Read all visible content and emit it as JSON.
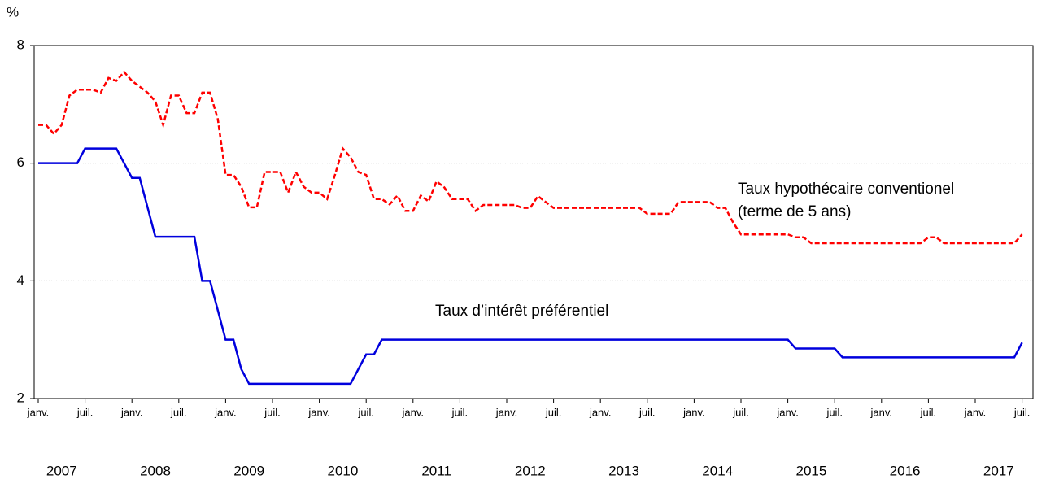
{
  "chart_data": {
    "type": "line",
    "y_unit": "%",
    "categories": [
      "janv.",
      null,
      null,
      null,
      null,
      null,
      "juil.",
      null,
      null,
      null,
      null,
      null,
      "janv.",
      null,
      null,
      null,
      null,
      null,
      "juil.",
      null,
      null,
      null,
      null,
      null,
      "janv.",
      null,
      null,
      null,
      null,
      null,
      "juil.",
      null,
      null,
      null,
      null,
      null,
      "janv.",
      null,
      null,
      null,
      null,
      null,
      "juil.",
      null,
      null,
      null,
      null,
      null,
      "janv.",
      null,
      null,
      null,
      null,
      null,
      "juil.",
      null,
      null,
      null,
      null,
      null,
      "janv.",
      null,
      null,
      null,
      null,
      null,
      "juil.",
      null,
      null,
      null,
      null,
      null,
      "janv.",
      null,
      null,
      null,
      null,
      null,
      "juil.",
      null,
      null,
      null,
      null,
      null,
      "janv.",
      null,
      null,
      null,
      null,
      null,
      "juil.",
      null,
      null,
      null,
      null,
      null,
      "janv.",
      null,
      null,
      null,
      null,
      null,
      "juil.",
      null,
      null,
      null,
      null,
      null,
      "janv.",
      null,
      null,
      null,
      null,
      null,
      "juil.",
      null,
      null,
      null,
      null,
      null,
      "janv.",
      null,
      null,
      null,
      null,
      null,
      "juil."
    ],
    "years": [
      "2007",
      "2008",
      "2009",
      "2010",
      "2011",
      "2012",
      "2013",
      "2014",
      "2015",
      "2016",
      "2017"
    ],
    "series": [
      {
        "name": "Taux hypothécaire conventionel",
        "name_detail": "(terme de 5 ans)",
        "color": "#ff0000",
        "dash": true,
        "values": [
          6.65,
          6.65,
          6.5,
          6.65,
          7.15,
          7.25,
          7.25,
          7.25,
          7.2,
          7.45,
          7.4,
          7.55,
          7.4,
          7.3,
          7.2,
          7.05,
          6.65,
          7.15,
          7.15,
          6.85,
          6.85,
          7.2,
          7.2,
          6.75,
          5.8,
          5.8,
          5.6,
          5.25,
          5.25,
          5.85,
          5.85,
          5.85,
          5.5,
          5.85,
          5.6,
          5.5,
          5.5,
          5.39,
          5.8,
          6.25,
          6.1,
          5.85,
          5.8,
          5.39,
          5.39,
          5.3,
          5.45,
          5.19,
          5.19,
          5.45,
          5.35,
          5.69,
          5.59,
          5.39,
          5.39,
          5.39,
          5.19,
          5.29,
          5.29,
          5.29,
          5.29,
          5.29,
          5.24,
          5.24,
          5.44,
          5.34,
          5.24,
          5.24,
          5.24,
          5.24,
          5.24,
          5.24,
          5.24,
          5.24,
          5.24,
          5.24,
          5.24,
          5.24,
          5.14,
          5.14,
          5.14,
          5.14,
          5.34,
          5.34,
          5.34,
          5.34,
          5.34,
          5.24,
          5.24,
          4.99,
          4.79,
          4.79,
          4.79,
          4.79,
          4.79,
          4.79,
          4.79,
          4.74,
          4.74,
          4.64,
          4.64,
          4.64,
          4.64,
          4.64,
          4.64,
          4.64,
          4.64,
          4.64,
          4.64,
          4.64,
          4.64,
          4.64,
          4.64,
          4.64,
          4.74,
          4.74,
          4.64,
          4.64,
          4.64,
          4.64,
          4.64,
          4.64,
          4.64,
          4.64,
          4.64,
          4.64,
          4.79
        ]
      },
      {
        "name": "Taux d’intérêt préférentiel",
        "color": "#0000dd",
        "dash": false,
        "values": [
          6,
          6,
          6,
          6,
          6,
          6,
          6.25,
          6.25,
          6.25,
          6.25,
          6.25,
          6,
          5.75,
          5.75,
          5.25,
          4.75,
          4.75,
          4.75,
          4.75,
          4.75,
          4.75,
          4,
          4,
          3.5,
          3,
          3,
          2.5,
          2.25,
          2.25,
          2.25,
          2.25,
          2.25,
          2.25,
          2.25,
          2.25,
          2.25,
          2.25,
          2.25,
          2.25,
          2.25,
          2.25,
          2.5,
          2.75,
          2.75,
          3,
          3,
          3,
          3,
          3,
          3,
          3,
          3,
          3,
          3,
          3,
          3,
          3,
          3,
          3,
          3,
          3,
          3,
          3,
          3,
          3,
          3,
          3,
          3,
          3,
          3,
          3,
          3,
          3,
          3,
          3,
          3,
          3,
          3,
          3,
          3,
          3,
          3,
          3,
          3,
          3,
          3,
          3,
          3,
          3,
          3,
          3,
          3,
          3,
          3,
          3,
          3,
          3,
          2.85,
          2.85,
          2.85,
          2.85,
          2.85,
          2.85,
          2.7,
          2.7,
          2.7,
          2.7,
          2.7,
          2.7,
          2.7,
          2.7,
          2.7,
          2.7,
          2.7,
          2.7,
          2.7,
          2.7,
          2.7,
          2.7,
          2.7,
          2.7,
          2.7,
          2.7,
          2.7,
          2.7,
          2.7,
          2.95
        ]
      }
    ],
    "ylim": [
      2,
      8
    ],
    "yticks": [
      2,
      4,
      6,
      8
    ],
    "grid": true
  }
}
